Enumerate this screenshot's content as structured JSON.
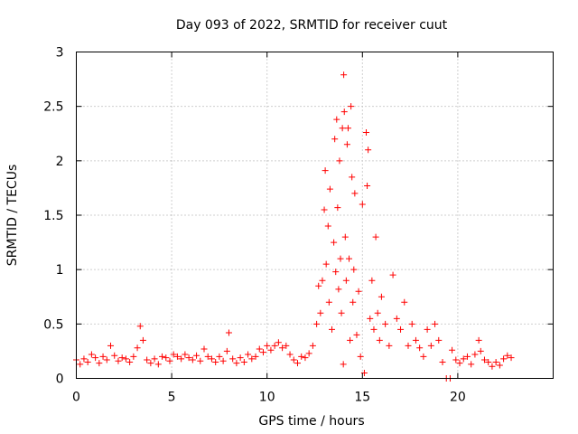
{
  "chart_data": {
    "type": "scatter",
    "title": "Day 093 of 2022, SRMTID for receiver cuut",
    "xlabel": "GPS time / hours",
    "ylabel": "SRMTID / TECUs",
    "xlim": [
      0,
      25
    ],
    "ylim": [
      0,
      3
    ],
    "xticks": [
      0,
      5,
      10,
      15,
      20
    ],
    "xtick_labels": [
      "0",
      "5",
      "10",
      "15",
      "20"
    ],
    "yticks": [
      0,
      0.5,
      1,
      1.5,
      2,
      2.5,
      3
    ],
    "ytick_labels": [
      "0",
      "0.5",
      "1",
      "1.5",
      "2",
      "2.5",
      "3"
    ],
    "grid": true,
    "marker": "+",
    "color": "#ff0000",
    "series": [
      {
        "name": "SRMTID",
        "points": [
          [
            0.0,
            0.17
          ],
          [
            0.2,
            0.13
          ],
          [
            0.4,
            0.18
          ],
          [
            0.6,
            0.15
          ],
          [
            0.8,
            0.22
          ],
          [
            1.0,
            0.19
          ],
          [
            1.2,
            0.14
          ],
          [
            1.4,
            0.2
          ],
          [
            1.6,
            0.17
          ],
          [
            1.8,
            0.3
          ],
          [
            2.0,
            0.21
          ],
          [
            2.2,
            0.16
          ],
          [
            2.4,
            0.19
          ],
          [
            2.6,
            0.18
          ],
          [
            2.8,
            0.15
          ],
          [
            3.0,
            0.2
          ],
          [
            3.2,
            0.28
          ],
          [
            3.35,
            0.48
          ],
          [
            3.5,
            0.35
          ],
          [
            3.7,
            0.17
          ],
          [
            3.9,
            0.14
          ],
          [
            4.1,
            0.18
          ],
          [
            4.3,
            0.13
          ],
          [
            4.5,
            0.2
          ],
          [
            4.7,
            0.19
          ],
          [
            4.9,
            0.16
          ],
          [
            5.1,
            0.22
          ],
          [
            5.3,
            0.2
          ],
          [
            5.5,
            0.18
          ],
          [
            5.7,
            0.22
          ],
          [
            5.9,
            0.19
          ],
          [
            6.1,
            0.17
          ],
          [
            6.3,
            0.21
          ],
          [
            6.5,
            0.16
          ],
          [
            6.7,
            0.27
          ],
          [
            6.9,
            0.2
          ],
          [
            7.1,
            0.18
          ],
          [
            7.3,
            0.15
          ],
          [
            7.5,
            0.2
          ],
          [
            7.7,
            0.16
          ],
          [
            7.9,
            0.25
          ],
          [
            8.0,
            0.42
          ],
          [
            8.2,
            0.18
          ],
          [
            8.4,
            0.14
          ],
          [
            8.6,
            0.19
          ],
          [
            8.8,
            0.15
          ],
          [
            9.0,
            0.22
          ],
          [
            9.2,
            0.18
          ],
          [
            9.4,
            0.2
          ],
          [
            9.6,
            0.27
          ],
          [
            9.8,
            0.24
          ],
          [
            10.0,
            0.3
          ],
          [
            10.2,
            0.26
          ],
          [
            10.4,
            0.3
          ],
          [
            10.6,
            0.33
          ],
          [
            10.8,
            0.28
          ],
          [
            11.0,
            0.3
          ],
          [
            11.2,
            0.22
          ],
          [
            11.4,
            0.17
          ],
          [
            11.6,
            0.14
          ],
          [
            11.8,
            0.2
          ],
          [
            12.0,
            0.19
          ],
          [
            12.2,
            0.23
          ],
          [
            12.4,
            0.3
          ],
          [
            12.6,
            0.5
          ],
          [
            12.7,
            0.85
          ],
          [
            12.8,
            0.6
          ],
          [
            12.9,
            0.9
          ],
          [
            13.0,
            1.55
          ],
          [
            13.05,
            1.91
          ],
          [
            13.1,
            1.05
          ],
          [
            13.2,
            1.4
          ],
          [
            13.25,
            0.7
          ],
          [
            13.3,
            1.74
          ],
          [
            13.4,
            0.45
          ],
          [
            13.5,
            1.25
          ],
          [
            13.55,
            2.2
          ],
          [
            13.6,
            0.98
          ],
          [
            13.65,
            2.38
          ],
          [
            13.7,
            1.57
          ],
          [
            13.75,
            0.82
          ],
          [
            13.8,
            2.0
          ],
          [
            13.85,
            1.1
          ],
          [
            13.9,
            0.6
          ],
          [
            13.95,
            2.3
          ],
          [
            14.0,
            0.13
          ],
          [
            14.02,
            2.79
          ],
          [
            14.05,
            2.45
          ],
          [
            14.1,
            1.3
          ],
          [
            14.15,
            0.9
          ],
          [
            14.2,
            2.15
          ],
          [
            14.25,
            2.3
          ],
          [
            14.3,
            1.1
          ],
          [
            14.35,
            0.35
          ],
          [
            14.4,
            2.5
          ],
          [
            14.45,
            1.85
          ],
          [
            14.5,
            0.7
          ],
          [
            14.55,
            1.0
          ],
          [
            14.6,
            1.7
          ],
          [
            14.7,
            0.4
          ],
          [
            14.8,
            0.8
          ],
          [
            14.9,
            0.2
          ],
          [
            15.0,
            1.6
          ],
          [
            15.1,
            0.05
          ],
          [
            15.2,
            2.26
          ],
          [
            15.25,
            1.77
          ],
          [
            15.3,
            2.1
          ],
          [
            15.4,
            0.55
          ],
          [
            15.5,
            0.9
          ],
          [
            15.6,
            0.45
          ],
          [
            15.7,
            1.3
          ],
          [
            15.8,
            0.6
          ],
          [
            15.9,
            0.35
          ],
          [
            16.0,
            0.75
          ],
          [
            16.2,
            0.5
          ],
          [
            16.4,
            0.3
          ],
          [
            16.6,
            0.95
          ],
          [
            16.8,
            0.55
          ],
          [
            17.0,
            0.45
          ],
          [
            17.2,
            0.7
          ],
          [
            17.4,
            0.3
          ],
          [
            17.6,
            0.5
          ],
          [
            17.8,
            0.35
          ],
          [
            18.0,
            0.28
          ],
          [
            18.2,
            0.2
          ],
          [
            18.4,
            0.45
          ],
          [
            18.6,
            0.3
          ],
          [
            18.8,
            0.5
          ],
          [
            19.0,
            0.35
          ],
          [
            19.2,
            0.15
          ],
          [
            19.4,
            0.0
          ],
          [
            19.6,
            0.0
          ],
          [
            19.7,
            0.26
          ],
          [
            19.9,
            0.17
          ],
          [
            20.1,
            0.14
          ],
          [
            20.3,
            0.18
          ],
          [
            20.5,
            0.2
          ],
          [
            20.7,
            0.13
          ],
          [
            20.9,
            0.22
          ],
          [
            21.1,
            0.35
          ],
          [
            21.2,
            0.25
          ],
          [
            21.4,
            0.17
          ],
          [
            21.6,
            0.15
          ],
          [
            21.8,
            0.11
          ],
          [
            22.0,
            0.15
          ],
          [
            22.2,
            0.12
          ],
          [
            22.4,
            0.18
          ],
          [
            22.6,
            0.21
          ],
          [
            22.8,
            0.19
          ]
        ]
      }
    ]
  }
}
